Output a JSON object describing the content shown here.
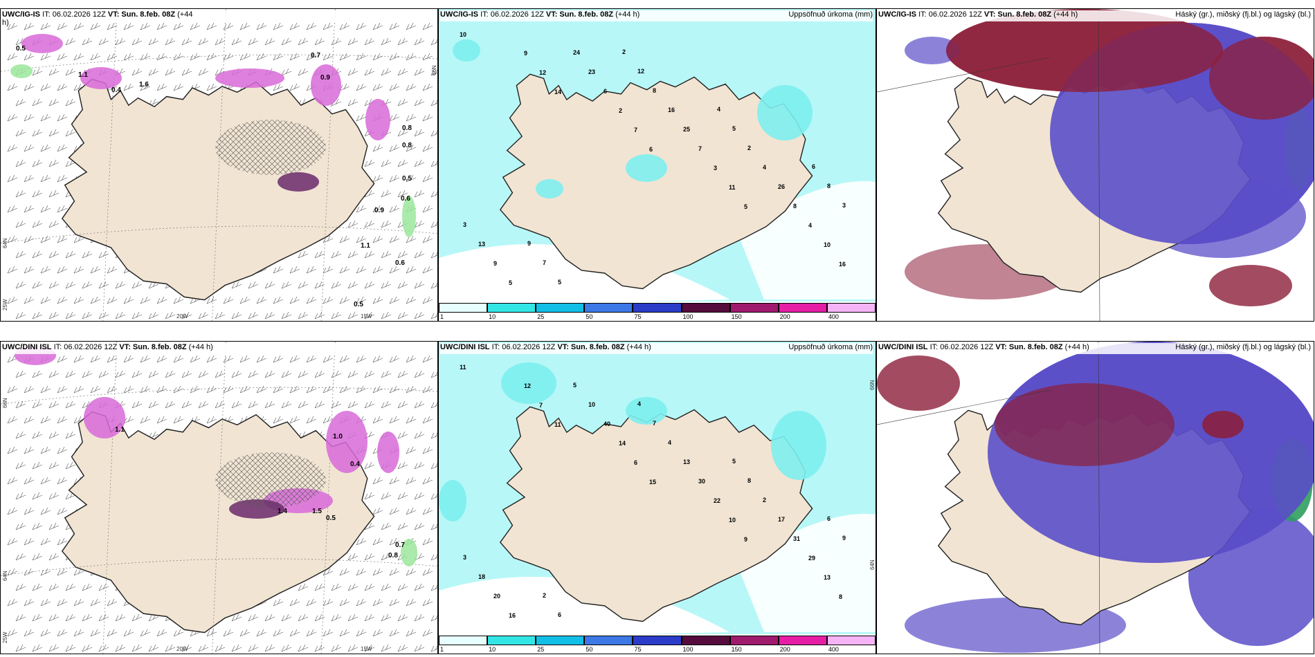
{
  "colors": {
    "land": "#f1e4d3",
    "sea_precip": "#b8f7f7",
    "precip_light": "#7deeee",
    "cloud_high": "#5b4fc9",
    "cloud_mid": "#8c1f3a",
    "cloud_low": "#2e9e5e",
    "snow_magenta": "#d86ad8",
    "snow_dark": "#6a2a6a"
  },
  "panels": {
    "top_left": {
      "label": "UWC/IG-IS",
      "it": "IT: 06.02.2026 12Z",
      "vt": "VT: Sun. 8.feb. 08Z",
      "lead": "(+44",
      "lead2": "h)"
    },
    "top_mid": {
      "label": "UWC/IG-IS",
      "it": "IT: 06.02.2026 12Z",
      "vt": "VT: Sun. 8.feb. 08Z",
      "lead": "(+44 h)",
      "right": "Uppsöfnuð úrkoma (mm)"
    },
    "top_right": {
      "label": "UWC/IG-IS",
      "it": "IT: 06.02.2026 12Z",
      "vt": "VT: Sun. 8.feb. 08Z",
      "lead": "(+44 h)",
      "right": "Háský (gr.), miðský (fj.bl.) og lágský (bl.)"
    },
    "bot_left": {
      "label": "UWC/DINI ISL",
      "it": "IT: 06.02.2026 12Z",
      "vt": "VT: Sun. 8.feb. 08Z",
      "lead": "(+44 h)"
    },
    "bot_mid": {
      "label": "UWC/DINI ISL",
      "it": "IT: 06.02.2026 12Z",
      "vt": "VT: Sun. 8.feb. 08Z",
      "lead": "(+44 h)",
      "right": "Uppsöfnuð úrkoma (mm)"
    },
    "bot_right": {
      "label": "UWC/DINI ISL",
      "it": "IT: 06.02.2026 12Z",
      "vt": "VT: Sun. 8.feb. 08Z",
      "lead": "(+44 h)",
      "right": "Háský (gr.), miðský (fj.bl.) og lágský (bl.)"
    }
  },
  "axis_labels": {
    "lon_20w": "20W",
    "lon_15w": "15W",
    "lon_25w": "25W",
    "lat_64n": "64N",
    "lat_66n": "66N"
  },
  "colorbar": {
    "ticks": [
      "1",
      "10",
      "25",
      "50",
      "75",
      "100",
      "150",
      "200",
      "400"
    ],
    "colors": [
      "#e6ffff",
      "#33e6e6",
      "#11bfe6",
      "#3c78e6",
      "#2a3cc8",
      "#550b3c",
      "#a01a6e",
      "#e61ea5",
      "#f5b4f5"
    ]
  },
  "top_left_values": [
    "0.5",
    "0.4",
    "1.6",
    "0.7",
    "0.9",
    "0.5",
    "0.6",
    "0.9",
    "1.1",
    "0.6",
    "0.5",
    "0.8",
    "0.8",
    "1.1"
  ],
  "bot_left_values": [
    "0.7",
    "0.8",
    "1.4",
    "1.5",
    "0.4",
    "1.0",
    "1.1",
    "0.5"
  ],
  "top_mid_values": [
    "10",
    "14",
    "6",
    "5",
    "16",
    "12",
    "7",
    "11",
    "10",
    "9",
    "2",
    "3",
    "4",
    "5",
    "6",
    "7",
    "8",
    "9",
    "23",
    "25",
    "26",
    "13",
    "24",
    "16",
    "4",
    "3",
    "5",
    "8",
    "2",
    "3",
    "7",
    "12",
    "5",
    "8",
    "9",
    "2",
    "4",
    "6"
  ],
  "bot_mid_values": [
    "11",
    "11",
    "15",
    "9",
    "8",
    "7",
    "6",
    "10",
    "13",
    "12",
    "14",
    "22",
    "29",
    "16",
    "40",
    "30",
    "31",
    "20",
    "10",
    "13",
    "17",
    "18",
    "5",
    "4",
    "2",
    "3",
    "6",
    "7",
    "8",
    "9",
    "2",
    "4",
    "5",
    "6"
  ]
}
